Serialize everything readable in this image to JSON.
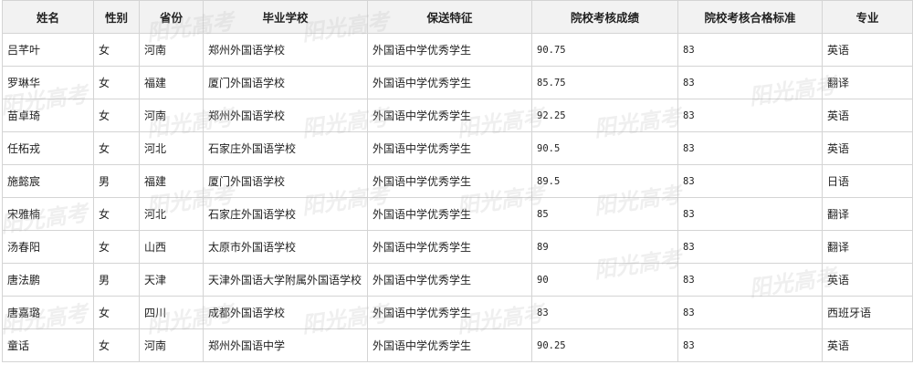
{
  "table": {
    "headers": [
      "姓名",
      "性别",
      "省份",
      "毕业学校",
      "保送特征",
      "院校考核成绩",
      "院校考核合格标准",
      "专业"
    ],
    "rows": [
      [
        "吕芊叶",
        "女",
        "河南",
        "郑州外国语学校",
        "外国语中学优秀学生",
        "90.75",
        "83",
        "英语"
      ],
      [
        "罗琳华",
        "女",
        "福建",
        "厦门外国语学校",
        "外国语中学优秀学生",
        "85.75",
        "83",
        "翻译"
      ],
      [
        "苗卓琦",
        "女",
        "河南",
        "郑州外国语学校",
        "外国语中学优秀学生",
        "92.25",
        "83",
        "英语"
      ],
      [
        "任柘戎",
        "女",
        "河北",
        "石家庄外国语学校",
        "外国语中学优秀学生",
        "90.5",
        "83",
        "英语"
      ],
      [
        "施懿宸",
        "男",
        "福建",
        "厦门外国语学校",
        "外国语中学优秀学生",
        "89.5",
        "83",
        "日语"
      ],
      [
        "宋雅楠",
        "女",
        "河北",
        "石家庄外国语学校",
        "外国语中学优秀学生",
        "85",
        "83",
        "翻译"
      ],
      [
        "汤春阳",
        "女",
        "山西",
        "太原市外国语学校",
        "外国语中学优秀学生",
        "89",
        "83",
        "翻译"
      ],
      [
        "唐法鹏",
        "男",
        "天津",
        "天津外国语大学附属外国语学校",
        "外国语中学优秀学生",
        "90",
        "83",
        "英语"
      ],
      [
        "唐嘉璐",
        "女",
        "四川",
        "成都外国语学校",
        "外国语中学优秀学生",
        "83",
        "83",
        "西班牙语"
      ],
      [
        "童话",
        "女",
        "河南",
        "郑州外国语中学",
        "外国语中学优秀学生",
        "90.25",
        "83",
        "英语"
      ]
    ]
  },
  "watermark": "阳光高考"
}
